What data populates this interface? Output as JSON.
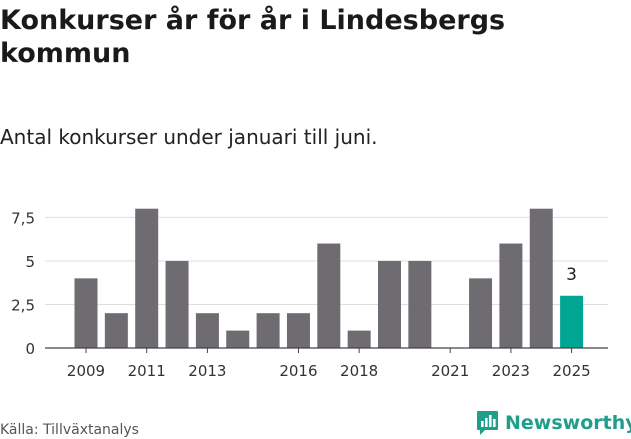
{
  "title": "Konkurser år för år i Lindesbergs kommun",
  "subtitle": "Antal konkurser under januari till juni.",
  "source": "Källa: Tillväxtanalys",
  "brand": "Newsworthy",
  "colors": {
    "bar": "#6e6c71",
    "highlight": "#00a693",
    "grid": "#dedede",
    "brand": "#1f9e8b"
  },
  "icons": {
    "logo": "newsworthy-chart-icon"
  },
  "chart_data": {
    "type": "bar",
    "categories": [
      "2009",
      "2010",
      "2011",
      "2012",
      "2013",
      "2014",
      "2015",
      "2016",
      "2017",
      "2018",
      "2019",
      "2020",
      "2021",
      "2022",
      "2023",
      "2024",
      "2025"
    ],
    "values": [
      4,
      2,
      8,
      5,
      2,
      1,
      2,
      2,
      6,
      1,
      5,
      5,
      0,
      4,
      6,
      8,
      3
    ],
    "x_tick_labels": [
      "2009",
      "2011",
      "2013",
      "2016",
      "2018",
      "2021",
      "2023",
      "2025"
    ],
    "y_ticks": [
      0,
      2.5,
      5,
      7.5
    ],
    "y_tick_labels": [
      "0",
      "2,5",
      "5",
      "7,5"
    ],
    "ylim": [
      0,
      8.5
    ],
    "highlight_index": 16,
    "data_labels": [
      {
        "index": 16,
        "text": "3"
      }
    ],
    "grid": true,
    "legend": "none"
  }
}
